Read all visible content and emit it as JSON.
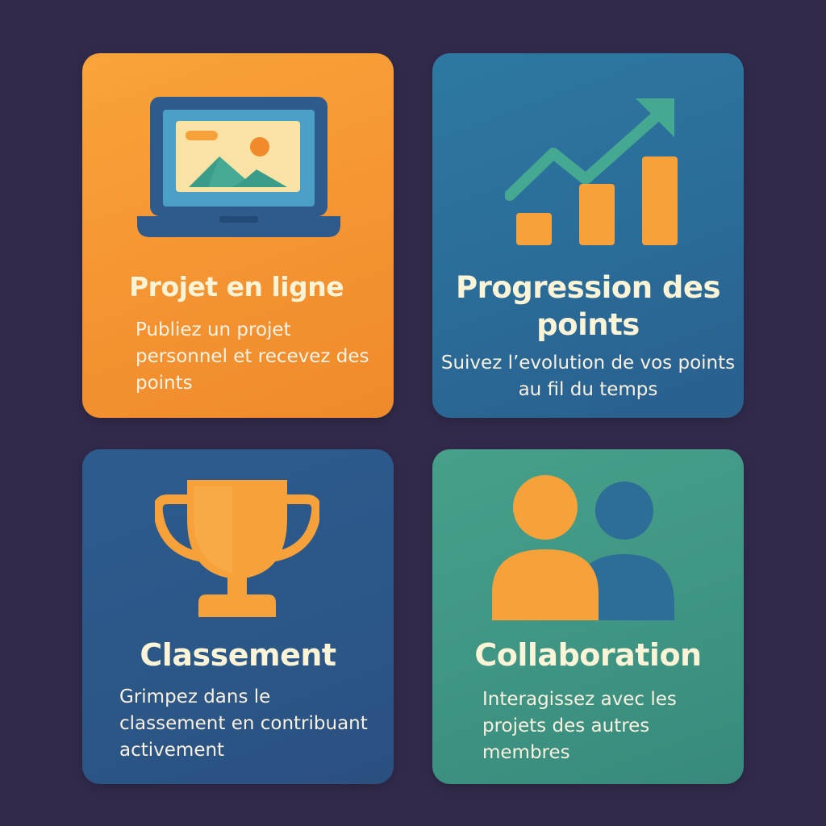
{
  "colors": {
    "background": "#312a4b",
    "orange": "#f59432",
    "blue": "#2a6c98",
    "navy": "#2b5787",
    "green": "#3f9583",
    "text_light": "#fbf4d6"
  },
  "cards": [
    {
      "icon": "laptop-image-icon",
      "title": "Projet en ligne",
      "description": "Publiez un projet personnel et recevez des points"
    },
    {
      "icon": "growth-chart-icon",
      "title": "Progression des points",
      "description": "Suivez l’evolution de vos points au fil du temps"
    },
    {
      "icon": "trophy-icon",
      "title": "Classement",
      "description": "Grimpez dans le classement en contribuant activement"
    },
    {
      "icon": "users-icon",
      "title": "Collaboration",
      "description": "Interagissez avec les projets des autres membres"
    }
  ]
}
